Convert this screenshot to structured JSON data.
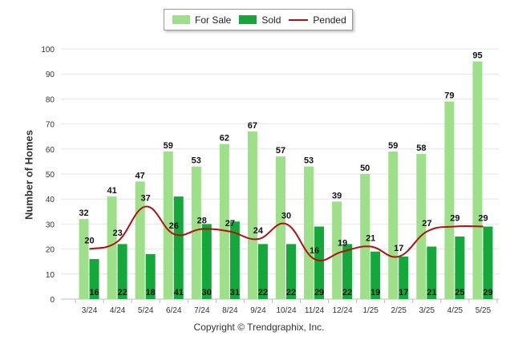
{
  "legend": {
    "for_sale_label": "For Sale",
    "sold_label": "Sold",
    "pended_label": "Pended"
  },
  "copyright": "Copyright © Trendgraphix, Inc.",
  "colors": {
    "for_sale": "#9edf8a",
    "sold": "#14a83a",
    "pended": "#b31010"
  },
  "chart_data": {
    "type": "bar",
    "categories": [
      "3/24",
      "4/24",
      "5/24",
      "6/24",
      "7/24",
      "8/24",
      "9/24",
      "10/24",
      "11/24",
      "12/24",
      "1/25",
      "2/25",
      "3/25",
      "4/25",
      "5/25"
    ],
    "series": [
      {
        "name": "For Sale",
        "type": "bar",
        "values": [
          32,
          41,
          47,
          59,
          53,
          62,
          67,
          57,
          53,
          39,
          50,
          59,
          58,
          79,
          95
        ]
      },
      {
        "name": "Sold",
        "type": "bar",
        "values": [
          16,
          22,
          18,
          41,
          30,
          31,
          22,
          22,
          29,
          22,
          19,
          17,
          21,
          25,
          29
        ]
      },
      {
        "name": "Pended",
        "type": "line",
        "values": [
          20,
          23,
          37,
          26,
          28,
          27,
          24,
          30,
          16,
          19,
          21,
          17,
          27,
          29,
          29
        ]
      }
    ],
    "ylabel": "Number of Homes",
    "xlabel": "",
    "ylim": [
      0,
      100
    ],
    "yticks": [
      0,
      10,
      20,
      30,
      40,
      50,
      60,
      70,
      80,
      90,
      100
    ],
    "grid": true,
    "legend_position": "top-center"
  }
}
